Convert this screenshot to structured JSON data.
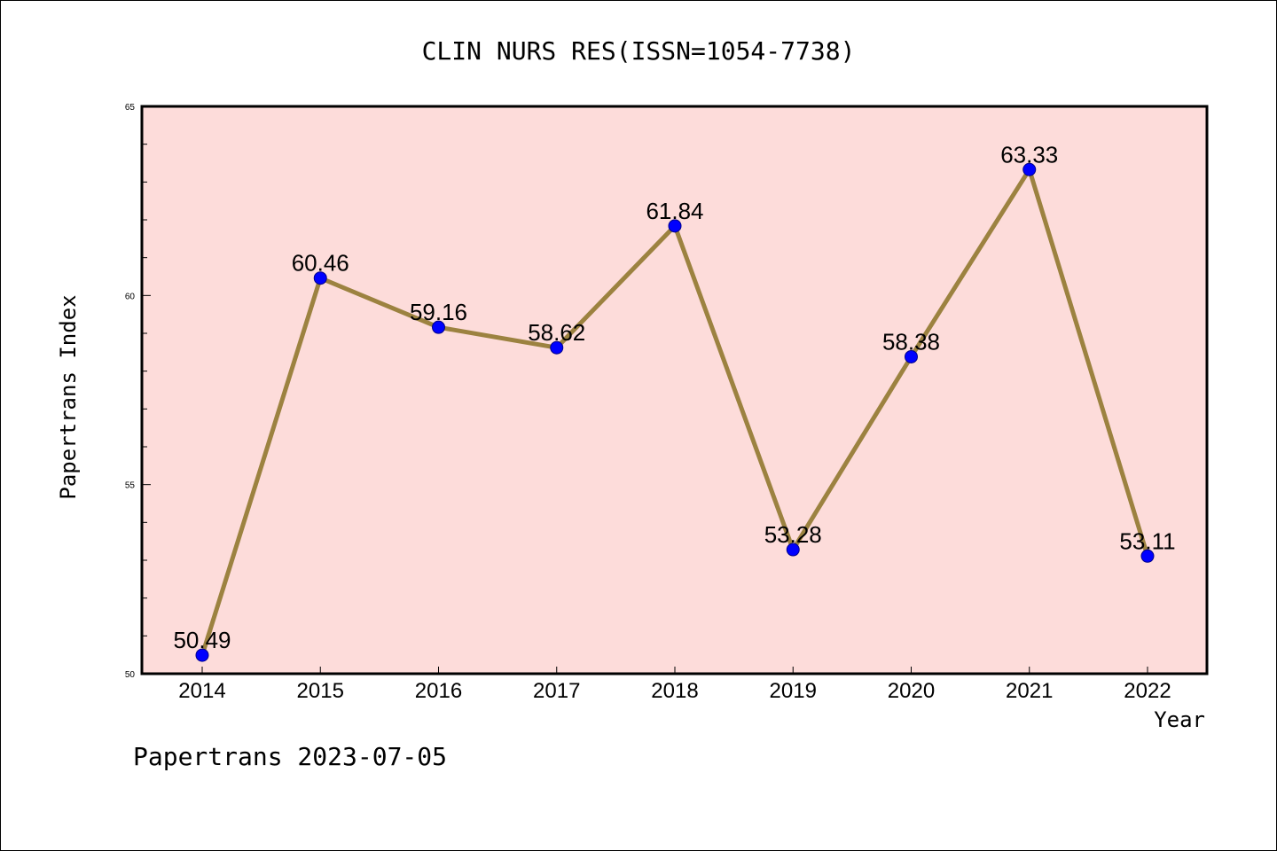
{
  "footer": "Papertrans 2023-07-05",
  "colors": {
    "plot_background": "#FDDCDA",
    "line": "#9C8240",
    "marker": "#0000FF",
    "axis": "#000000"
  },
  "chart_data": {
    "type": "line",
    "title": "CLIN NURS RES(ISSN=1054-7738)",
    "xlabel": "Year",
    "ylabel": "Papertrans Index",
    "categories": [
      "2014",
      "2015",
      "2016",
      "2017",
      "2018",
      "2019",
      "2020",
      "2021",
      "2022"
    ],
    "series": [
      {
        "values": [
          50.49,
          60.46,
          59.16,
          58.62,
          61.84,
          53.28,
          58.38,
          63.33,
          53.11
        ],
        "labels": [
          "50.49",
          "60.46",
          "59.16",
          "58.62",
          "61.84",
          "53.28",
          "58.38",
          "63.33",
          "53.11"
        ]
      }
    ],
    "ylim": [
      50,
      65
    ],
    "yticks": [
      "50",
      "55",
      "60",
      "65"
    ],
    "grid": false,
    "legend": "none"
  }
}
